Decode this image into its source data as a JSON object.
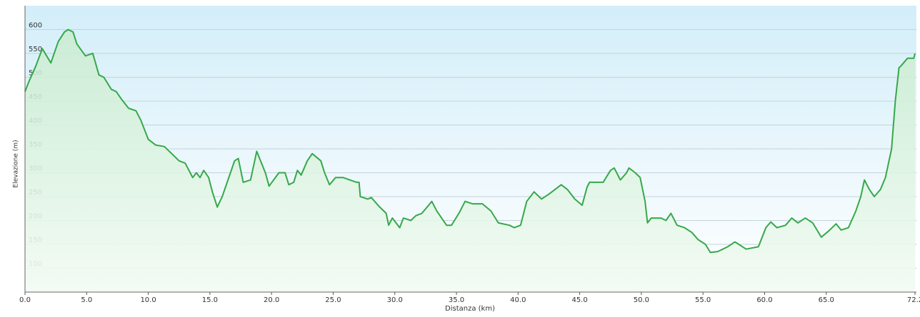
{
  "chart_data": {
    "type": "line",
    "x_label": "Distanza  (km)",
    "y_label": "Elevazione (m)",
    "xlim": [
      0,
      72.2
    ],
    "ylim": [
      50,
      650
    ],
    "xticks": [
      {
        "value": 0,
        "label": "0.0"
      },
      {
        "value": 5,
        "label": "5.0"
      },
      {
        "value": 10,
        "label": "10.0"
      },
      {
        "value": 15,
        "label": "15.0"
      },
      {
        "value": 20,
        "label": "20.0"
      },
      {
        "value": 25,
        "label": "25.0"
      },
      {
        "value": 30,
        "label": "30.0"
      },
      {
        "value": 35,
        "label": "35.0"
      },
      {
        "value": 40,
        "label": "40.0"
      },
      {
        "value": 45,
        "label": "45.0"
      },
      {
        "value": 50,
        "label": "50.0"
      },
      {
        "value": 55,
        "label": "55.0"
      },
      {
        "value": 60,
        "label": "60.0"
      },
      {
        "value": 65,
        "label": "65.0"
      },
      72.2
    ],
    "yticks": [
      100,
      150,
      200,
      250,
      300,
      350,
      400,
      450,
      500,
      550,
      600
    ],
    "grid": true,
    "series": [
      {
        "name": "Elevazione",
        "color": "#36a84a",
        "x": [
          0,
          0.3,
          0.9,
          1.4,
          2.1,
          2.7,
          3.2,
          3.5,
          3.9,
          4.2,
          4.9,
          5.5,
          6.0,
          6.4,
          7.0,
          7.4,
          7.8,
          8.4,
          9.0,
          9.4,
          10.0,
          10.6,
          11.3,
          11.9,
          12.5,
          13.0,
          13.6,
          13.9,
          14.2,
          14.5,
          14.9,
          15.2,
          15.6,
          16.0,
          17.0,
          17.3,
          17.7,
          18.3,
          18.8,
          19.5,
          19.8,
          20.6,
          21.1,
          21.4,
          21.8,
          22.1,
          22.4,
          22.9,
          23.3,
          24.0,
          24.3,
          24.7,
          25.2,
          25.8,
          26.9,
          27.1,
          27.2,
          27.8,
          28.1,
          28.7,
          29.3,
          29.5,
          29.8,
          30.4,
          30.7,
          31.3,
          31.7,
          32.2,
          33.0,
          33.4,
          34.2,
          34.6,
          35.2,
          35.7,
          36.3,
          37.1,
          37.8,
          38.4,
          39.3,
          39.7,
          40.2,
          40.7,
          41.3,
          41.9,
          42.5,
          43.0,
          43.5,
          44.0,
          44.6,
          45.2,
          45.6,
          45.8,
          46.9,
          47.5,
          47.8,
          48.3,
          48.8,
          49.0,
          49.5,
          49.9,
          50.3,
          50.5,
          50.8,
          51.6,
          52.0,
          52.4,
          52.9,
          53.5,
          54.1,
          54.6,
          55.2,
          55.6,
          56.2,
          57.0,
          57.6,
          58.5,
          59.5,
          60.1,
          60.5,
          61.0,
          61.7,
          62.2,
          62.7,
          63.3,
          63.9,
          64.6,
          65.2,
          65.8,
          66.2,
          66.8,
          67.4,
          67.8,
          68.1,
          68.5,
          68.9,
          69.4,
          69.8,
          70.3,
          70.6,
          70.9,
          71.1,
          71.6,
          72.1,
          72.2
        ],
        "values": [
          470,
          490,
          525,
          560,
          530,
          575,
          595,
          600,
          595,
          570,
          545,
          550,
          505,
          500,
          475,
          470,
          455,
          435,
          430,
          410,
          370,
          358,
          355,
          340,
          325,
          320,
          290,
          300,
          290,
          305,
          290,
          260,
          228,
          250,
          325,
          330,
          280,
          285,
          345,
          300,
          272,
          300,
          300,
          275,
          280,
          305,
          295,
          325,
          340,
          325,
          300,
          275,
          290,
          290,
          280,
          280,
          250,
          245,
          248,
          230,
          215,
          190,
          205,
          185,
          205,
          200,
          210,
          215,
          240,
          220,
          190,
          190,
          215,
          240,
          235,
          235,
          220,
          195,
          190,
          185,
          190,
          240,
          260,
          245,
          255,
          265,
          275,
          265,
          245,
          232,
          270,
          280,
          280,
          305,
          310,
          285,
          300,
          310,
          300,
          290,
          240,
          195,
          205,
          205,
          200,
          215,
          190,
          185,
          175,
          160,
          150,
          133,
          135,
          145,
          155,
          140,
          145,
          185,
          197,
          185,
          190,
          205,
          195,
          205,
          195,
          165,
          178,
          193,
          180,
          185,
          220,
          250,
          285,
          265,
          250,
          265,
          290,
          350,
          450,
          520,
          525,
          540,
          540,
          550
        ]
      }
    ]
  }
}
